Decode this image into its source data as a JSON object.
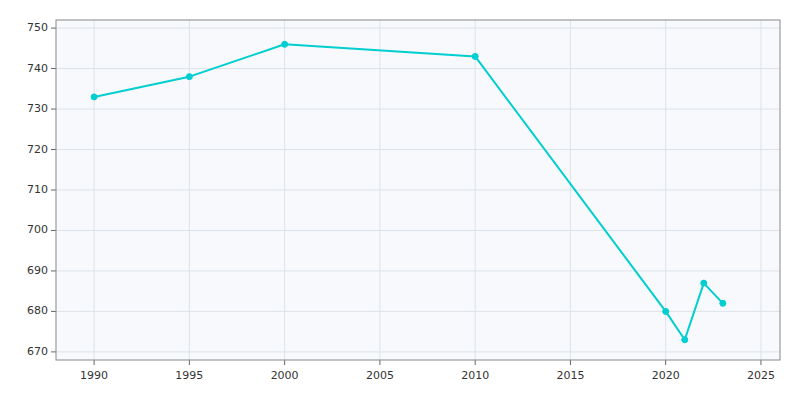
{
  "chart_data": {
    "type": "line",
    "x": [
      1990,
      1995,
      2000,
      2010,
      2020,
      2021,
      2022,
      2023
    ],
    "values": [
      733,
      738,
      746,
      743,
      680,
      673,
      687,
      682
    ],
    "color": "#00CED1",
    "marker": "circle",
    "xlim": [
      1988,
      2026
    ],
    "ylim": [
      668,
      752
    ],
    "xticks": [
      1990,
      1995,
      2000,
      2005,
      2010,
      2015,
      2020,
      2025
    ],
    "yticks": [
      670,
      680,
      690,
      700,
      710,
      720,
      730,
      740,
      750
    ],
    "grid": true
  }
}
